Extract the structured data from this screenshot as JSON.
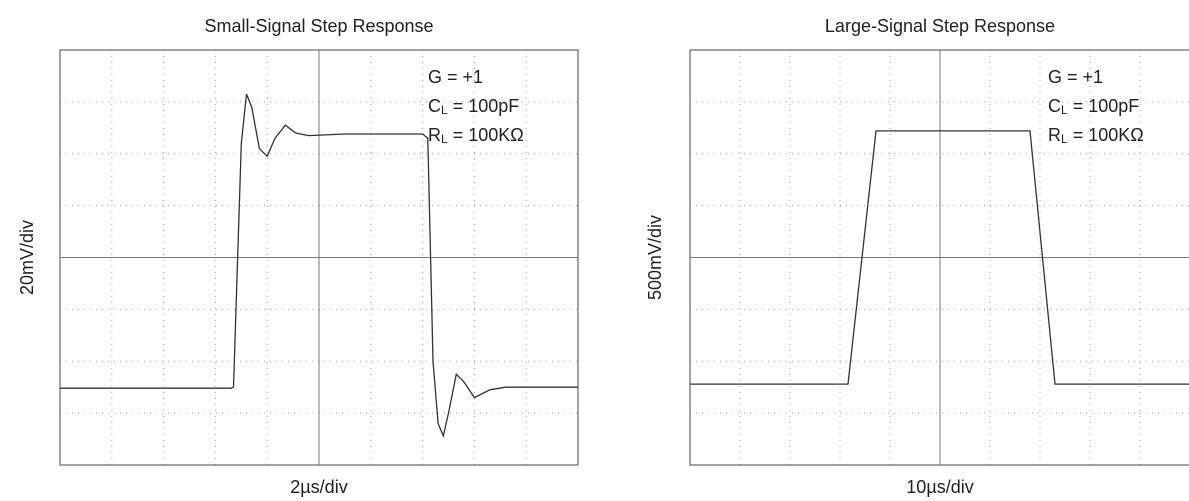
{
  "chart_data": [
    {
      "type": "line",
      "title": "Small-Signal Step Response",
      "x_label": "2µs/div",
      "y_label": "20mV/div",
      "annotations": [
        {
          "text": "G = +1"
        },
        {
          "main": "C",
          "sub": "L",
          "rest": " = 100pF"
        },
        {
          "main": "R",
          "sub": "L",
          "rest": " = 100KΩ"
        }
      ],
      "xlim": [
        0,
        10
      ],
      "ylim": [
        0,
        8
      ],
      "xticks": [
        0,
        1,
        2,
        3,
        4,
        5,
        6,
        7,
        8,
        9,
        10
      ],
      "yticks": [
        0,
        1,
        2,
        3,
        4,
        5,
        6,
        7,
        8
      ],
      "grid": true,
      "x": [
        0,
        3.3,
        3.35,
        3.5,
        3.6,
        3.7,
        3.85,
        4.0,
        4.15,
        4.35,
        4.55,
        4.8,
        5.5,
        7.0,
        7.1,
        7.2,
        7.3,
        7.4,
        7.5,
        7.65,
        7.8,
        8.0,
        8.3,
        8.6,
        10
      ],
      "series": [
        {
          "name": "Output",
          "color": "#333333",
          "values": [
            1.48,
            1.48,
            1.5,
            6.2,
            7.15,
            6.9,
            6.1,
            5.95,
            6.3,
            6.55,
            6.4,
            6.35,
            6.38,
            6.38,
            6.3,
            2.0,
            0.8,
            0.56,
            1.0,
            1.75,
            1.6,
            1.3,
            1.45,
            1.5,
            1.5
          ]
        }
      ]
    },
    {
      "type": "line",
      "title": "Large-Signal Step Response",
      "x_label": "10µs/div",
      "y_label": "500mV/div",
      "annotations": [
        {
          "text": "G = +1"
        },
        {
          "main": "C",
          "sub": "L",
          "rest": " = 100pF"
        },
        {
          "main": "R",
          "sub": "L",
          "rest": " = 100KΩ"
        }
      ],
      "xlim": [
        0,
        10
      ],
      "ylim": [
        0,
        8
      ],
      "xticks": [
        0,
        1,
        2,
        3,
        4,
        5,
        6,
        7,
        8,
        9,
        10
      ],
      "yticks": [
        0,
        1,
        2,
        3,
        4,
        5,
        6,
        7,
        8
      ],
      "grid": true,
      "x": [
        0,
        3.16,
        3.72,
        6.8,
        7.3,
        10
      ],
      "series": [
        {
          "name": "Output",
          "color": "#333333",
          "values": [
            1.56,
            1.56,
            6.44,
            6.44,
            1.56,
            1.56
          ]
        }
      ]
    }
  ]
}
